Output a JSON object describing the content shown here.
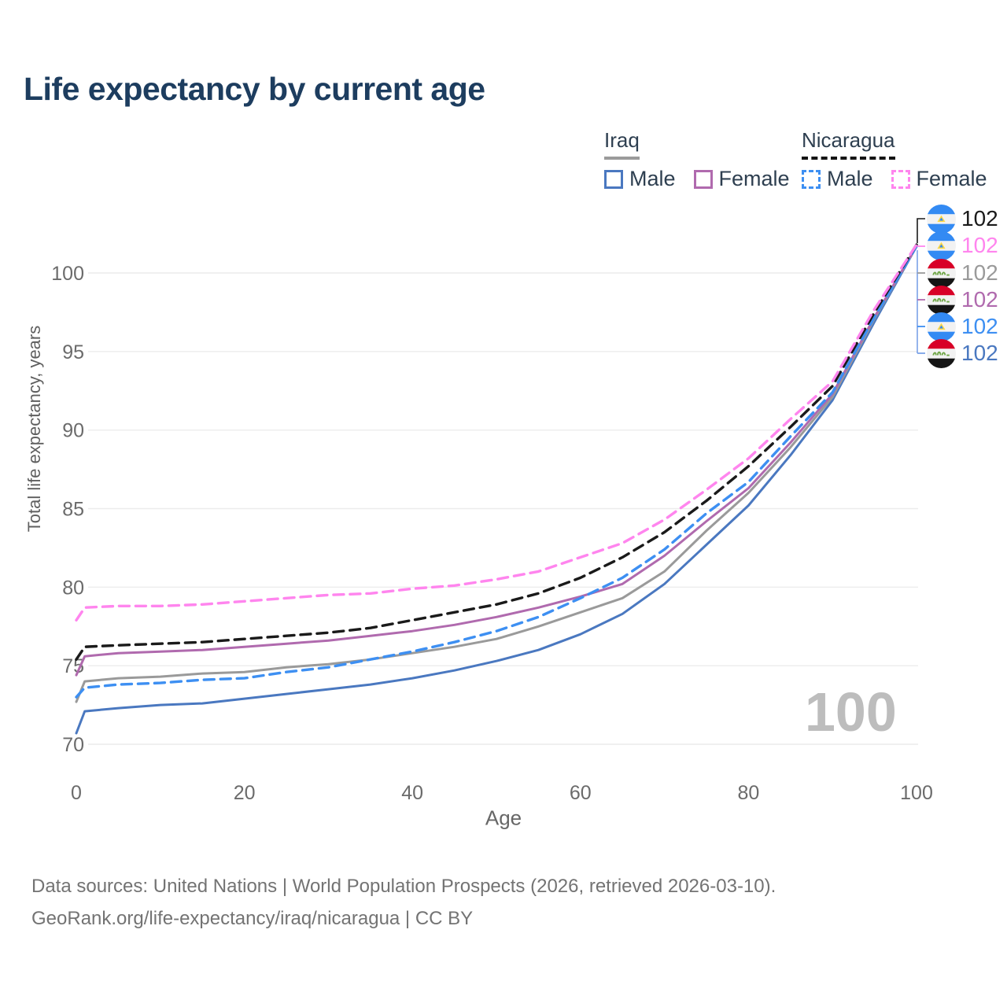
{
  "header": {
    "title": "Life expectancy by current age"
  },
  "legend": {
    "groups": [
      {
        "name": "Iraq",
        "underline_style": "solid",
        "underline_color": "#9b9b9b",
        "items": [
          {
            "label": "Male",
            "color": "#4a78c0",
            "dashed": false
          },
          {
            "label": "Female",
            "color": "#b06aae",
            "dashed": false
          }
        ]
      },
      {
        "name": "Nicaragua",
        "underline_style": "dashed",
        "underline_color": "#141414",
        "items": [
          {
            "label": "Male",
            "color": "#3d8ff2",
            "dashed": true
          },
          {
            "label": "Female",
            "color": "#ff85ee",
            "dashed": true
          }
        ]
      }
    ]
  },
  "chart_data": {
    "type": "line",
    "title": "Life expectancy by current age",
    "xlabel": "Age",
    "ylabel": "Total life expectancy, years",
    "watermark": "100",
    "x_ticks": [
      0,
      20,
      40,
      60,
      80,
      100
    ],
    "y_ticks": [
      70,
      75,
      80,
      85,
      90,
      95,
      100
    ],
    "xlim": [
      0,
      100
    ],
    "ylim": [
      70,
      102.5
    ],
    "grid": "horizontal",
    "legend_position": "top-right",
    "ages": [
      0,
      1,
      5,
      10,
      15,
      20,
      25,
      30,
      35,
      40,
      45,
      50,
      55,
      60,
      65,
      70,
      75,
      80,
      85,
      90,
      95,
      100
    ],
    "series": [
      {
        "name": "Iraq Male",
        "country": "iraq",
        "sex": "male",
        "color": "#4a78c0",
        "dashed": false,
        "end_label": "102",
        "values": [
          70.7,
          72.1,
          72.3,
          72.5,
          72.6,
          72.9,
          73.2,
          73.5,
          73.8,
          74.2,
          74.7,
          75.3,
          76.0,
          77.0,
          78.3,
          80.2,
          82.7,
          85.2,
          88.4,
          91.9,
          96.9,
          101.7
        ]
      },
      {
        "name": "Iraq Total",
        "country": "iraq",
        "sex": "total",
        "color": "#9a9a9a",
        "dashed": false,
        "end_label": "102",
        "values": [
          72.7,
          74.0,
          74.2,
          74.3,
          74.5,
          74.6,
          74.9,
          75.1,
          75.4,
          75.8,
          76.2,
          76.7,
          77.5,
          78.4,
          79.3,
          81.0,
          83.6,
          86.0,
          88.9,
          92.1,
          97.1,
          101.7
        ]
      },
      {
        "name": "Iraq Female",
        "country": "iraq",
        "sex": "female",
        "color": "#b06aae",
        "dashed": false,
        "end_label": "102",
        "values": [
          74.4,
          75.6,
          75.8,
          75.9,
          76.0,
          76.2,
          76.4,
          76.6,
          76.9,
          77.2,
          77.6,
          78.1,
          78.7,
          79.4,
          80.2,
          82.0,
          84.2,
          86.3,
          89.2,
          92.3,
          97.2,
          101.7
        ]
      },
      {
        "name": "Nicaragua Male",
        "country": "nicaragua",
        "sex": "male",
        "color": "#3d8ff2",
        "dashed": true,
        "end_label": "102",
        "values": [
          73.0,
          73.6,
          73.8,
          73.9,
          74.1,
          74.2,
          74.6,
          74.9,
          75.4,
          75.9,
          76.5,
          77.2,
          78.1,
          79.3,
          80.6,
          82.4,
          84.7,
          86.7,
          89.6,
          92.4,
          97.2,
          101.7
        ]
      },
      {
        "name": "Nicaragua Total",
        "country": "nicaragua",
        "sex": "total",
        "color": "#1a1a1a",
        "dashed": true,
        "end_label": "102",
        "values": [
          75.4,
          76.2,
          76.3,
          76.4,
          76.5,
          76.7,
          76.9,
          77.1,
          77.4,
          77.9,
          78.4,
          78.9,
          79.6,
          80.6,
          81.9,
          83.5,
          85.5,
          87.7,
          90.2,
          92.8,
          97.5,
          101.8
        ]
      },
      {
        "name": "Nicaragua Female",
        "country": "nicaragua",
        "sex": "female",
        "color": "#ff85ee",
        "dashed": true,
        "end_label": "102",
        "values": [
          77.9,
          78.7,
          78.8,
          78.8,
          78.9,
          79.1,
          79.3,
          79.5,
          79.6,
          79.9,
          80.1,
          80.5,
          81.0,
          81.9,
          82.8,
          84.3,
          86.2,
          88.2,
          90.7,
          93.1,
          97.7,
          101.8
        ]
      }
    ]
  },
  "end_labels": [
    {
      "flag": "nicaragua",
      "series": "Nicaragua Total",
      "value": "102",
      "color": "#1a1a1a"
    },
    {
      "flag": "nicaragua",
      "series": "Nicaragua Female",
      "value": "102",
      "color": "#ff85ee"
    },
    {
      "flag": "iraq",
      "series": "Iraq Total",
      "value": "102",
      "color": "#9a9a9a"
    },
    {
      "flag": "iraq",
      "series": "Iraq Female",
      "value": "102",
      "color": "#b06aae"
    },
    {
      "flag": "nicaragua",
      "series": "Nicaragua Male",
      "value": "102",
      "color": "#3d8ff2"
    },
    {
      "flag": "iraq",
      "series": "Iraq Male",
      "value": "102",
      "color": "#4a78c0"
    }
  ],
  "footer": {
    "line1": "Data sources: United Nations | World Population Prospects (2026, retrieved 2026-03-10).",
    "line2": "GeoRank.org/life-expectancy/iraq/nicaragua | CC BY"
  },
  "colors": {
    "title": "#1d3d5f",
    "grid": "#ececec",
    "axis_text": "#6b6b6b",
    "watermark": "#bdbdbd",
    "footer_text": "#737373"
  }
}
